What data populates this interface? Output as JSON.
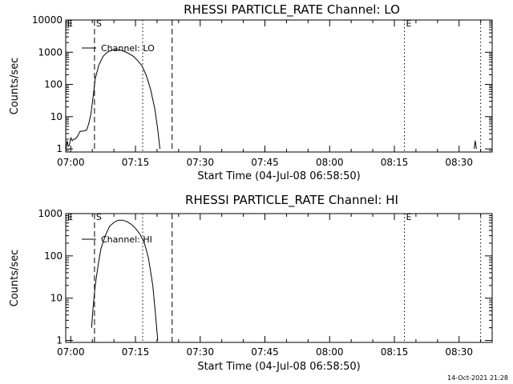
{
  "footer": {
    "timestamp": "14-Oct-2021 21:28"
  },
  "chart_data": [
    {
      "type": "line",
      "title": "RHESSI PARTICLE_RATE Channel: LO",
      "xlabel": "Start Time (04-Jul-08 06:58:50)",
      "ylabel": "Counts/sec",
      "xscale": "time",
      "yscale": "log",
      "xlim": [
        "06:58:50",
        "08:37:40"
      ],
      "ylim": [
        0.8,
        10000
      ],
      "x_ticks": [
        "07:00",
        "07:15",
        "07:30",
        "07:45",
        "08:00",
        "08:15",
        "08:30"
      ],
      "y_ticks": [
        "1",
        "10",
        "100",
        "1000",
        "10000"
      ],
      "legend": {
        "position": "top-left",
        "entries": [
          "Channel: LO"
        ]
      },
      "markers": [
        {
          "label": "S",
          "time": "07:05:30",
          "style": "dashed"
        },
        {
          "label": "",
          "time": "07:16:40",
          "style": "dotted"
        },
        {
          "label": "",
          "time": "07:23:30",
          "style": "dashed"
        },
        {
          "label": "E",
          "time": "08:17:20",
          "style": "dotted"
        },
        {
          "label": "",
          "time": "08:35:00",
          "style": "dotted"
        },
        {
          "label": "E",
          "time": "06:58:50",
          "style": "edge"
        }
      ],
      "series": [
        {
          "name": "Channel: LO",
          "points": [
            [
              "06:58:55",
              1.0
            ],
            [
              "06:59:10",
              1.8
            ],
            [
              "06:59:25",
              1.2
            ],
            [
              "06:59:40",
              1.3
            ],
            [
              "07:00:00",
              2.2
            ],
            [
              "07:00:20",
              1.8
            ],
            [
              "07:00:40",
              2.0
            ],
            [
              "07:01:00",
              2.0
            ],
            [
              "07:01:30",
              2.4
            ],
            [
              "07:02:10",
              3.5
            ],
            [
              "07:03:00",
              3.6
            ],
            [
              "07:03:40",
              3.8
            ],
            [
              "07:04:10",
              6.0
            ],
            [
              "07:04:40",
              12.0
            ],
            [
              "07:05:10",
              40.0
            ],
            [
              "07:05:40",
              150.0
            ],
            [
              "07:06:30",
              400.0
            ],
            [
              "07:07:30",
              750.0
            ],
            [
              "07:08:30",
              1000.0
            ],
            [
              "07:09:30",
              1150.0
            ],
            [
              "07:10:30",
              1200.0
            ],
            [
              "07:11:30",
              1150.0
            ],
            [
              "07:12:30",
              1050.0
            ],
            [
              "07:13:30",
              900.0
            ],
            [
              "07:14:30",
              750.0
            ],
            [
              "07:15:30",
              550.0
            ],
            [
              "07:16:30",
              380.0
            ],
            [
              "07:17:30",
              190.0
            ],
            [
              "07:18:30",
              70.0
            ],
            [
              "07:19:30",
              17.0
            ],
            [
              "07:20:10",
              4.0
            ],
            [
              "07:20:40",
              1.0
            ]
          ]
        },
        {
          "name": "",
          "points": [
            [
              "08:33:30",
              1.0
            ],
            [
              "08:33:45",
              1.8
            ],
            [
              "08:34:00",
              1.0
            ]
          ]
        }
      ]
    },
    {
      "type": "line",
      "title": "RHESSI PARTICLE_RATE Channel: HI",
      "xlabel": "Start Time (04-Jul-08 06:58:50)",
      "ylabel": "Counts/sec",
      "xscale": "time",
      "yscale": "log",
      "xlim": [
        "06:58:50",
        "08:37:40"
      ],
      "ylim": [
        0.9,
        1000
      ],
      "x_ticks": [
        "07:00",
        "07:15",
        "07:30",
        "07:45",
        "08:00",
        "08:15",
        "08:30"
      ],
      "y_ticks": [
        "1",
        "10",
        "100",
        "1000"
      ],
      "legend": {
        "position": "top-left",
        "entries": [
          "Channel: HI"
        ]
      },
      "markers": [
        {
          "label": "S",
          "time": "07:05:30",
          "style": "dashed"
        },
        {
          "label": "",
          "time": "07:16:40",
          "style": "dotted"
        },
        {
          "label": "",
          "time": "07:23:30",
          "style": "dashed"
        },
        {
          "label": "E",
          "time": "08:17:20",
          "style": "dotted"
        },
        {
          "label": "",
          "time": "08:35:00",
          "style": "dotted"
        },
        {
          "label": "E",
          "time": "06:58:50",
          "style": "edge"
        }
      ],
      "series": [
        {
          "name": "Channel: HI",
          "points": [
            [
              "07:04:50",
              2.0
            ],
            [
              "07:05:10",
              6.0
            ],
            [
              "07:05:40",
              20.0
            ],
            [
              "07:06:20",
              60.0
            ],
            [
              "07:07:00",
              150.0
            ],
            [
              "07:08:00",
              300.0
            ],
            [
              "07:09:00",
              500.0
            ],
            [
              "07:10:00",
              620.0
            ],
            [
              "07:11:00",
              700.0
            ],
            [
              "07:12:00",
              700.0
            ],
            [
              "07:13:00",
              650.0
            ],
            [
              "07:14:00",
              560.0
            ],
            [
              "07:15:00",
              450.0
            ],
            [
              "07:16:00",
              330.0
            ],
            [
              "07:17:00",
              210.0
            ],
            [
              "07:18:00",
              90.0
            ],
            [
              "07:19:00",
              20.0
            ],
            [
              "07:19:40",
              4.0
            ],
            [
              "07:20:10",
              1.0
            ]
          ]
        }
      ]
    }
  ]
}
